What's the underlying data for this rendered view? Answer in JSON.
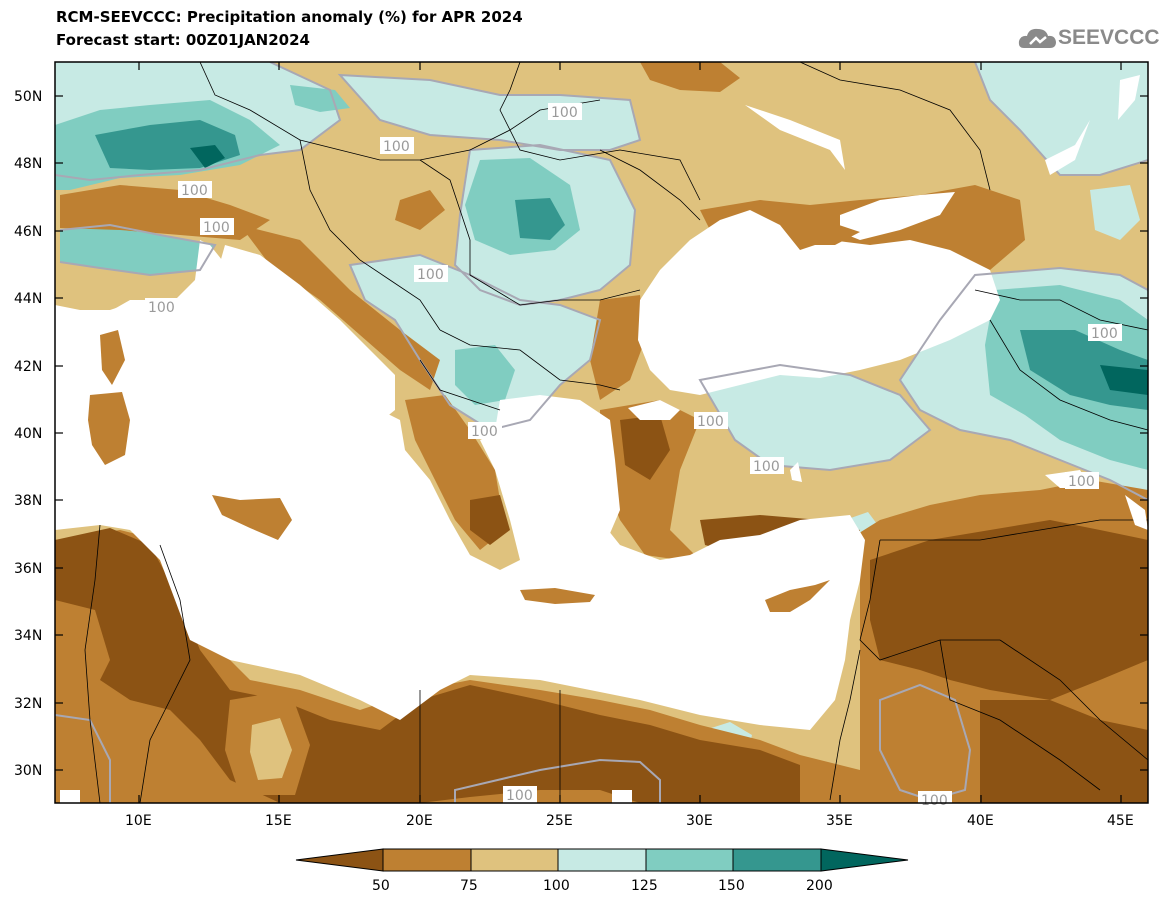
{
  "header": {
    "title": "RCM-SEEVCCC: Precipitation anomaly (%) for APR 2024",
    "subtitle": "Forecast start: 00Z01JAN2024"
  },
  "logo": {
    "text": "SEEVCCC",
    "icon": "cloud-icon"
  },
  "map": {
    "lat_labels": [
      "50N",
      "48N",
      "46N",
      "44N",
      "42N",
      "40N",
      "38N",
      "36N",
      "34N",
      "32N",
      "30N"
    ],
    "lon_labels": [
      "10E",
      "15E",
      "20E",
      "25E",
      "30E",
      "35E",
      "40E",
      "45E"
    ],
    "contour_label": "100",
    "contour_label_count": 14
  },
  "legend": {
    "tick_labels": [
      "50",
      "75",
      "100",
      "125",
      "150",
      "200"
    ],
    "colors": [
      "#8c5314",
      "#be8032",
      "#dfc27e",
      "#c7eae4",
      "#80cdc1",
      "#35978f",
      "#01665e"
    ]
  },
  "colors": {
    "lt50": "#8c5314",
    "c50_75": "#be8032",
    "c75_100": "#dfc27e",
    "c100_125": "#c7eae4",
    "c125_150": "#80cdc1",
    "c150_200": "#35978f",
    "gt200": "#01665e",
    "sea": "#ffffff"
  }
}
